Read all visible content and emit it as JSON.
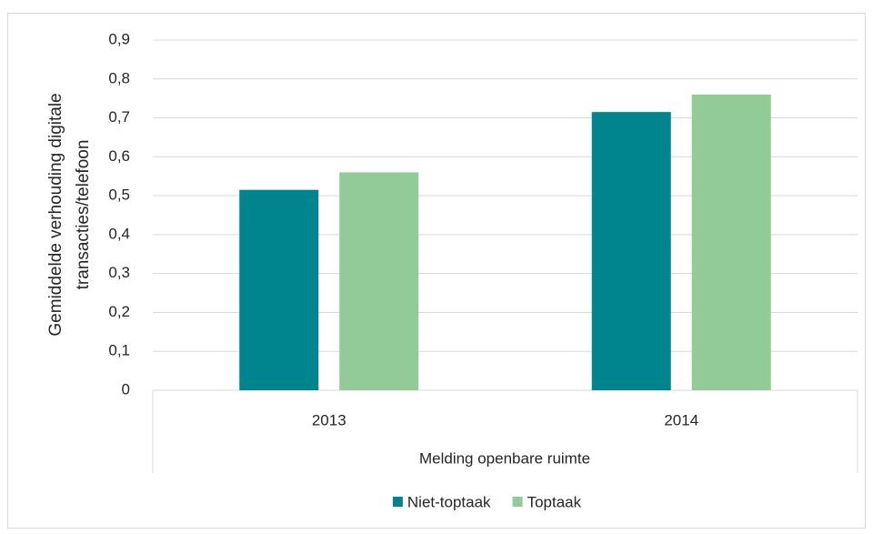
{
  "chart_data": {
    "type": "bar",
    "ylabel": [
      "Gemiddelde verhouding digitale",
      "transacties/telefoon"
    ],
    "xlabel": "Melding openbare ruimte",
    "categories": [
      "2013",
      "2014"
    ],
    "series": [
      {
        "name": "Niet-toptaak",
        "color": "#00858f",
        "values": [
          0.515,
          0.715
        ]
      },
      {
        "name": "Toptaak",
        "color": "#93cb98",
        "values": [
          0.56,
          0.76
        ]
      }
    ],
    "ylim": [
      0,
      0.9
    ],
    "yticks": [
      0,
      {
        "value": 0.1,
        "label": "0,1"
      },
      {
        "value": 0.2,
        "label": "0,2"
      },
      {
        "value": 0.3,
        "label": "0,3"
      },
      {
        "value": 0.4,
        "label": "0,4"
      },
      {
        "value": 0.5,
        "label": "0,5"
      },
      {
        "value": 0.6,
        "label": "0,6"
      },
      {
        "value": 0.7,
        "label": "0,7"
      },
      {
        "value": 0.8,
        "label": "0,8"
      },
      {
        "value": 0.9,
        "label": "0,9"
      }
    ],
    "grid": true,
    "legend": "bottom"
  }
}
